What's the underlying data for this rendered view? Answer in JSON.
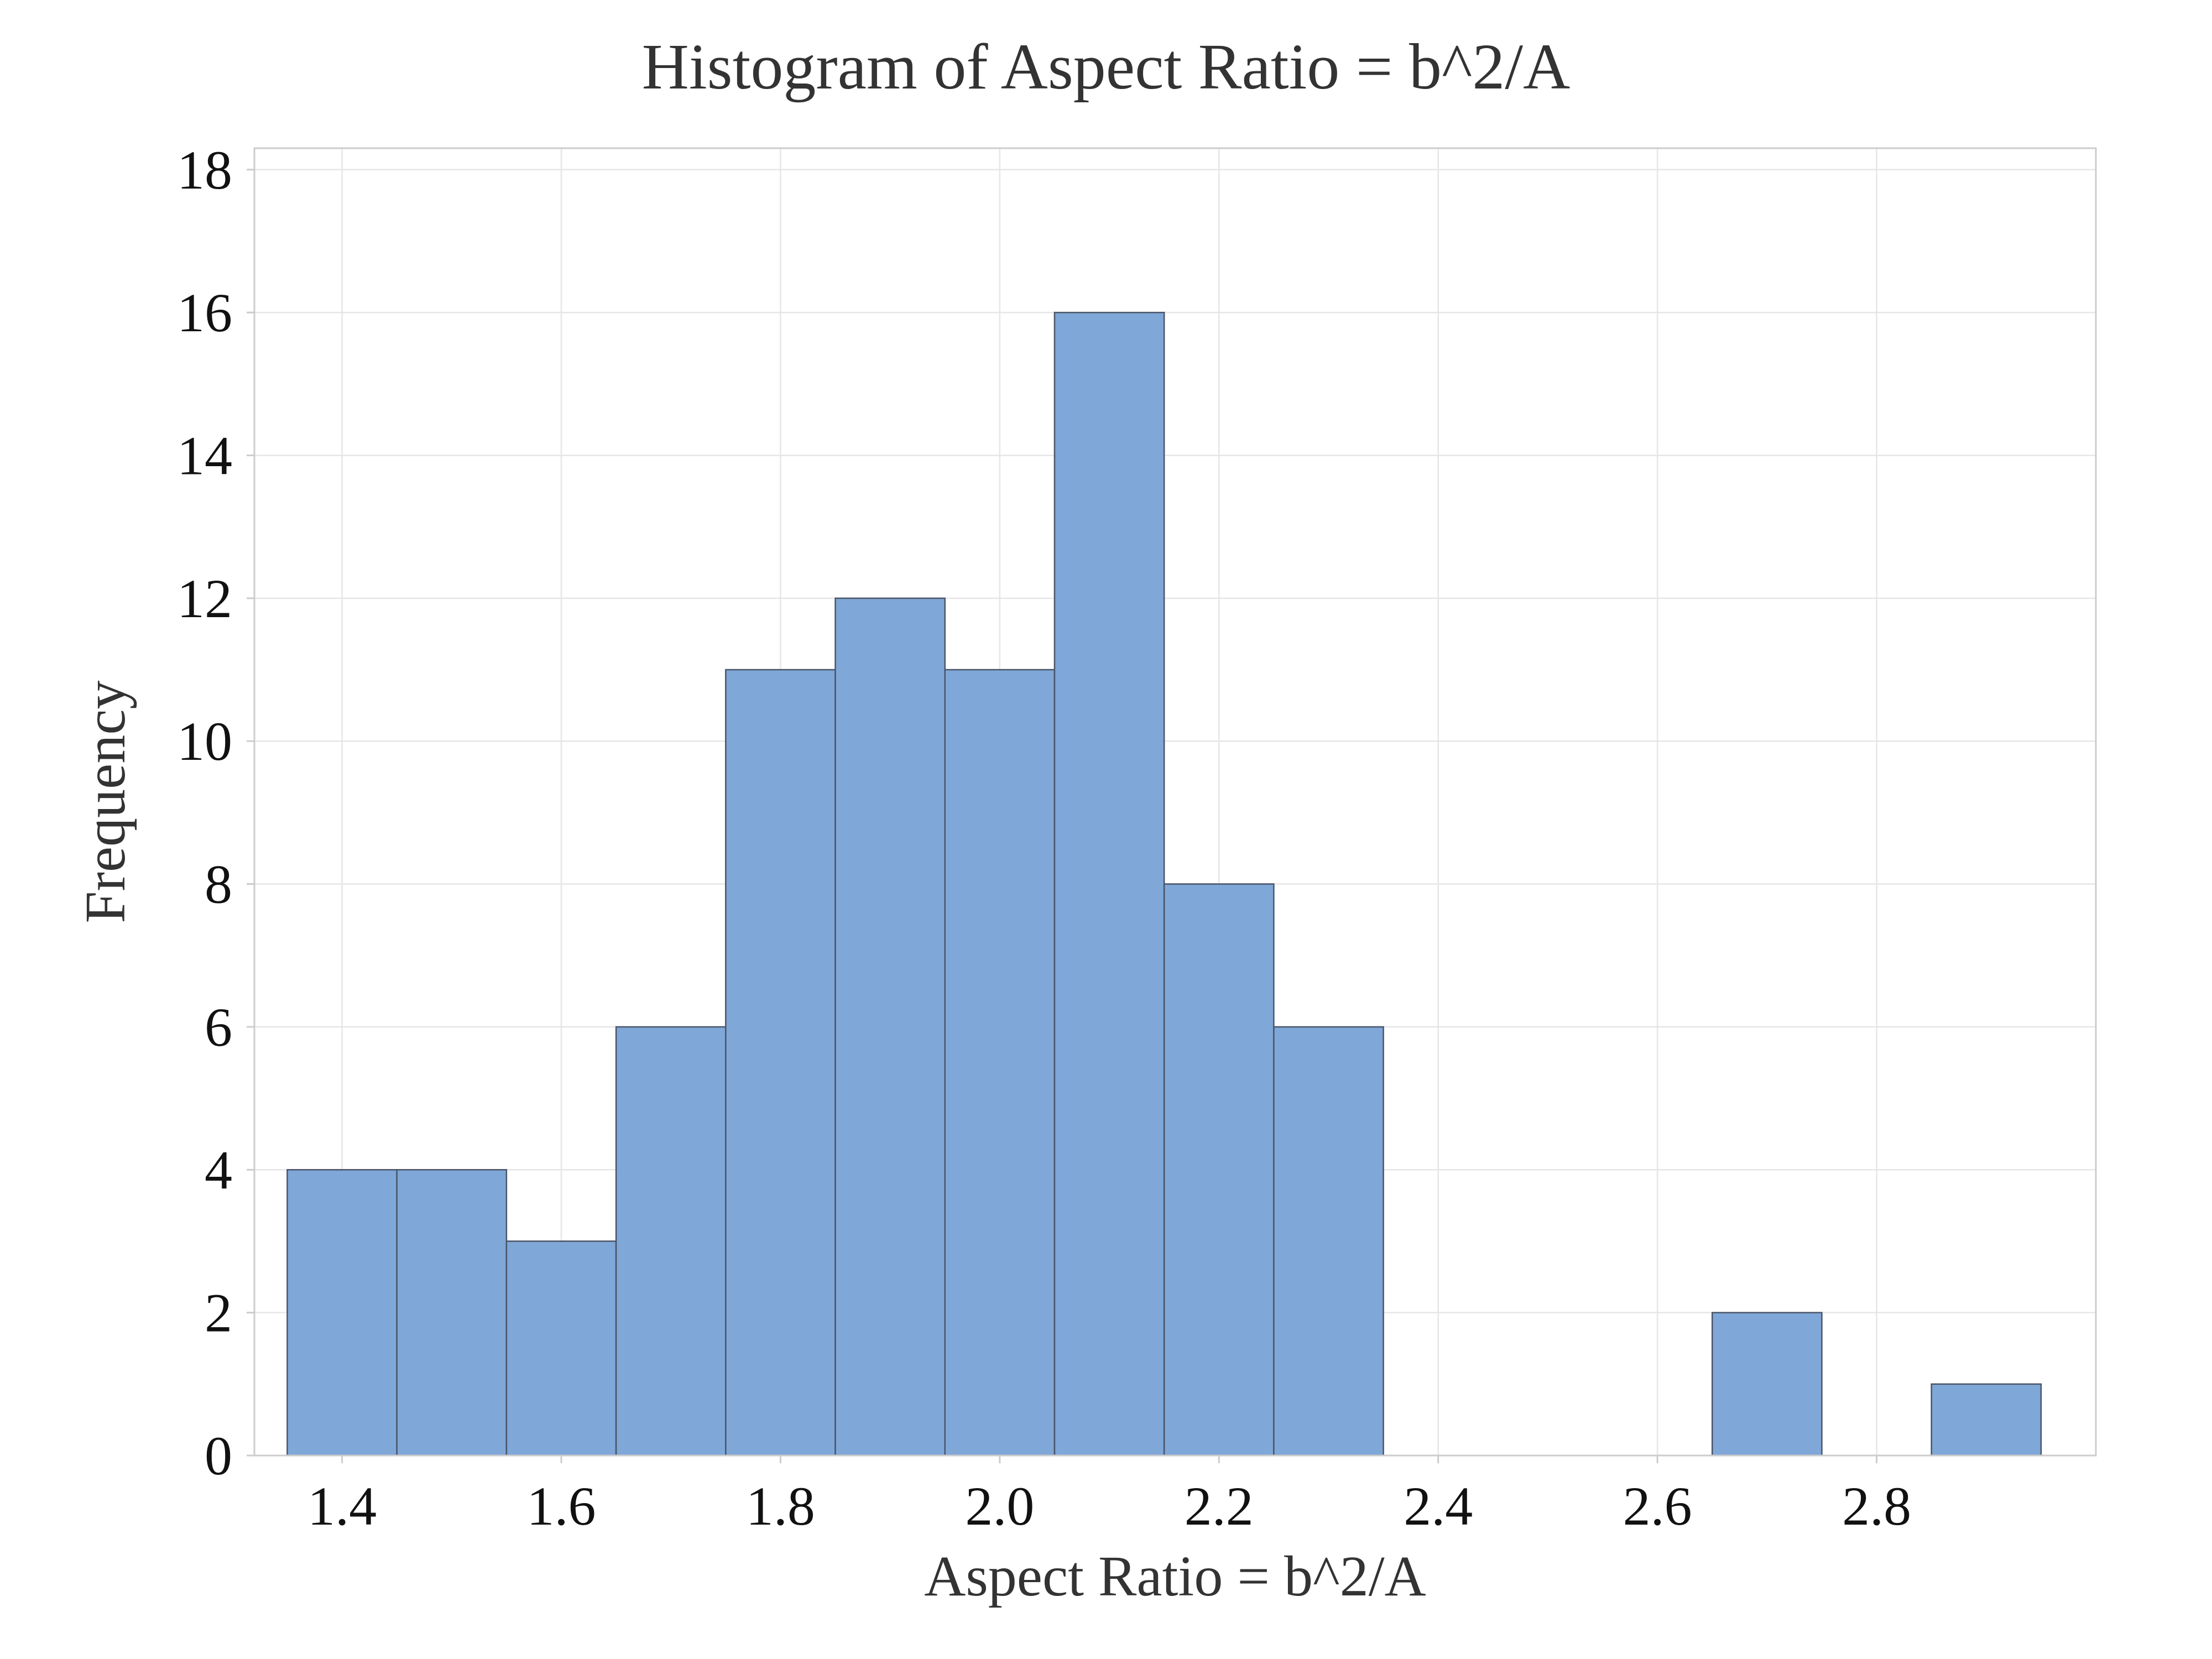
{
  "chart_data": {
    "type": "bar",
    "title": "Histogram of Aspect Ratio = b^2/A",
    "xlabel": "Aspect Ratio = b^2/A",
    "ylabel": "Frequency",
    "bin_width": 0.1,
    "bins": [
      {
        "start": 1.35,
        "end": 1.45,
        "count": 4
      },
      {
        "start": 1.45,
        "end": 1.55,
        "count": 4
      },
      {
        "start": 1.55,
        "end": 1.65,
        "count": 3
      },
      {
        "start": 1.65,
        "end": 1.75,
        "count": 6
      },
      {
        "start": 1.75,
        "end": 1.85,
        "count": 11
      },
      {
        "start": 1.85,
        "end": 1.95,
        "count": 12
      },
      {
        "start": 1.95,
        "end": 2.05,
        "count": 11
      },
      {
        "start": 2.05,
        "end": 2.15,
        "count": 16
      },
      {
        "start": 2.15,
        "end": 2.25,
        "count": 8
      },
      {
        "start": 2.25,
        "end": 2.35,
        "count": 6
      },
      {
        "start": 2.35,
        "end": 2.45,
        "count": 0
      },
      {
        "start": 2.45,
        "end": 2.55,
        "count": 0
      },
      {
        "start": 2.55,
        "end": 2.65,
        "count": 0
      },
      {
        "start": 2.65,
        "end": 2.75,
        "count": 2
      },
      {
        "start": 2.75,
        "end": 2.85,
        "count": 0
      },
      {
        "start": 2.85,
        "end": 2.95,
        "count": 1
      }
    ],
    "xlim": [
      1.32,
      3.0
    ],
    "ylim": [
      0,
      18.3
    ],
    "xticks": [
      "1.4",
      "1.6",
      "1.8",
      "2.0",
      "2.2",
      "2.4",
      "2.6",
      "2.8"
    ],
    "yticks": [
      "0",
      "2",
      "4",
      "6",
      "8",
      "10",
      "12",
      "14",
      "16",
      "18"
    ],
    "grid": true,
    "colors": {
      "bar_fill": "#7fa7d8",
      "bar_edge": "#4a5568",
      "grid": "#e6e6e6",
      "frame": "#cccccc"
    }
  }
}
